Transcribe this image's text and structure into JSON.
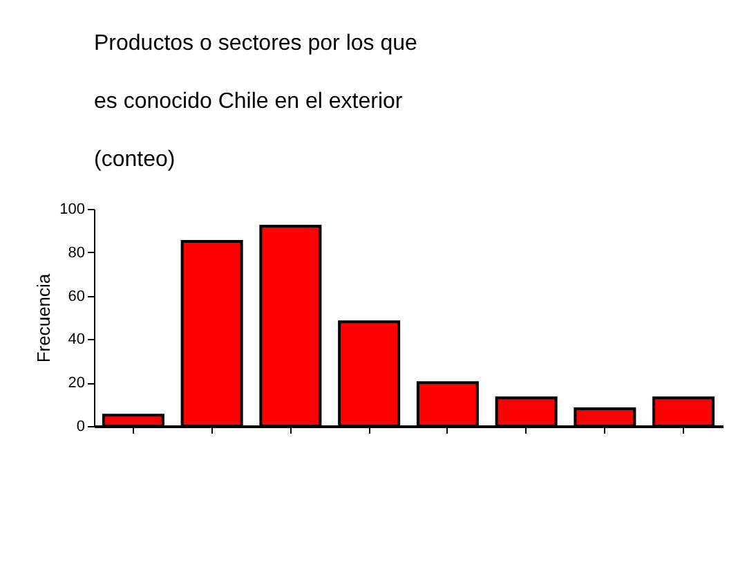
{
  "chart_data": {
    "type": "bar",
    "title": "Productos o sectores por los que es conocido Chile en el exterior (conteo)",
    "ylabel": "Frecuencia",
    "categories": [
      null,
      null,
      null,
      null,
      null,
      null,
      null,
      null
    ],
    "values": [
      5,
      85,
      92,
      48,
      20,
      13,
      8,
      13
    ],
    "color": "#ff0000",
    "ylim": [
      0,
      100
    ],
    "yticks": [
      0,
      20,
      40,
      60,
      80,
      100
    ],
    "grid": false
  }
}
